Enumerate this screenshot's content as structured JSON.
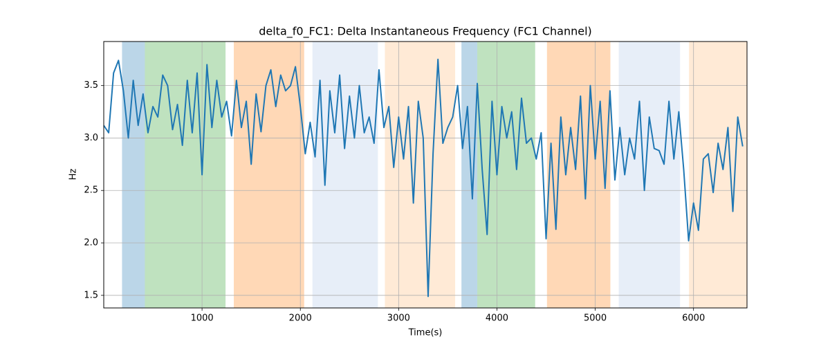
{
  "chart_data": {
    "type": "line",
    "title": "delta_f0_FC1: Delta Instantaneous Frequency (FC1 Channel)",
    "xlabel": "Time(s)",
    "ylabel": "Hz",
    "x": [
      0,
      50,
      100,
      150,
      200,
      250,
      300,
      350,
      400,
      450,
      500,
      550,
      600,
      650,
      700,
      750,
      800,
      850,
      900,
      950,
      1000,
      1050,
      1100,
      1150,
      1200,
      1250,
      1300,
      1350,
      1400,
      1450,
      1500,
      1550,
      1600,
      1650,
      1700,
      1750,
      1800,
      1850,
      1900,
      1950,
      2000,
      2050,
      2100,
      2150,
      2200,
      2250,
      2300,
      2350,
      2400,
      2450,
      2500,
      2550,
      2600,
      2650,
      2700,
      2750,
      2800,
      2850,
      2900,
      2950,
      3000,
      3050,
      3100,
      3150,
      3200,
      3250,
      3300,
      3350,
      3400,
      3450,
      3500,
      3550,
      3600,
      3650,
      3700,
      3750,
      3800,
      3850,
      3900,
      3950,
      4000,
      4050,
      4100,
      4150,
      4200,
      4250,
      4300,
      4350,
      4400,
      4450,
      4500,
      4550,
      4600,
      4650,
      4700,
      4750,
      4800,
      4850,
      4900,
      4950,
      5000,
      5050,
      5100,
      5150,
      5200,
      5250,
      5300,
      5350,
      5400,
      5450,
      5500,
      5550,
      5600,
      5650,
      5700,
      5750,
      5800,
      5850,
      5900,
      5950,
      6000,
      6050,
      6100,
      6150,
      6200,
      6250,
      6300,
      6350,
      6400,
      6450,
      6500
    ],
    "series": [
      {
        "name": "delta_f0_FC1",
        "color": "#1f77b4",
        "values": [
          3.12,
          3.05,
          3.62,
          3.74,
          3.45,
          3.0,
          3.55,
          3.12,
          3.42,
          3.05,
          3.3,
          3.2,
          3.6,
          3.5,
          3.08,
          3.32,
          2.93,
          3.55,
          3.05,
          3.62,
          2.65,
          3.7,
          3.1,
          3.55,
          3.2,
          3.35,
          3.02,
          3.55,
          3.1,
          3.35,
          2.75,
          3.42,
          3.06,
          3.5,
          3.65,
          3.3,
          3.6,
          3.45,
          3.5,
          3.68,
          3.3,
          2.85,
          3.15,
          2.82,
          3.55,
          2.55,
          3.45,
          3.05,
          3.6,
          2.9,
          3.4,
          3.0,
          3.5,
          3.05,
          3.2,
          2.95,
          3.65,
          3.1,
          3.3,
          2.72,
          3.2,
          2.8,
          3.3,
          2.38,
          3.35,
          3.0,
          1.49,
          2.85,
          3.75,
          2.95,
          3.1,
          3.2,
          3.5,
          2.9,
          3.3,
          2.42,
          3.52,
          2.7,
          2.08,
          3.35,
          2.65,
          3.3,
          3.0,
          3.25,
          2.7,
          3.38,
          2.95,
          3.0,
          2.8,
          3.05,
          2.04,
          2.95,
          2.13,
          3.2,
          2.65,
          3.1,
          2.7,
          3.4,
          2.42,
          3.5,
          2.8,
          3.35,
          2.52,
          3.45,
          2.6,
          3.1,
          2.65,
          3.0,
          2.8,
          3.35,
          2.5,
          3.2,
          2.9,
          2.88,
          2.75,
          3.35,
          2.8,
          3.25,
          2.7,
          2.02,
          2.38,
          2.12,
          2.8,
          2.85,
          2.48,
          2.95,
          2.7,
          3.1,
          2.3,
          3.2,
          2.92
        ]
      }
    ],
    "spans": [
      {
        "start": 186,
        "end": 418,
        "color": "#1f77b4",
        "alpha": 0.3
      },
      {
        "start": 418,
        "end": 1239,
        "color": "#2ca02c",
        "alpha": 0.3
      },
      {
        "start": 1323,
        "end": 2039,
        "color": "#ff7f0e",
        "alpha": 0.3
      },
      {
        "start": 2123,
        "end": 2789,
        "color": "#aec7e8",
        "alpha": 0.3
      },
      {
        "start": 2860,
        "end": 3575,
        "color": "#ffbb78",
        "alpha": 0.3
      },
      {
        "start": 3639,
        "end": 3800,
        "color": "#1f77b4",
        "alpha": 0.3
      },
      {
        "start": 3800,
        "end": 4389,
        "color": "#2ca02c",
        "alpha": 0.3
      },
      {
        "start": 4509,
        "end": 5154,
        "color": "#ff7f0e",
        "alpha": 0.3
      },
      {
        "start": 5239,
        "end": 5863,
        "color": "#aec7e8",
        "alpha": 0.3
      },
      {
        "start": 5954,
        "end": 6544,
        "color": "#ffbb78",
        "alpha": 0.3
      }
    ],
    "xlim": [
      0,
      6544
    ],
    "ylim": [
      1.38,
      3.92
    ],
    "xticks": [
      1000,
      2000,
      3000,
      4000,
      5000,
      6000
    ],
    "yticks": [
      1.5,
      {
        "value": 2,
        "label": "2.0"
      },
      2.5,
      {
        "value": 3,
        "label": "3.0"
      },
      3.5
    ],
    "grid": true
  }
}
